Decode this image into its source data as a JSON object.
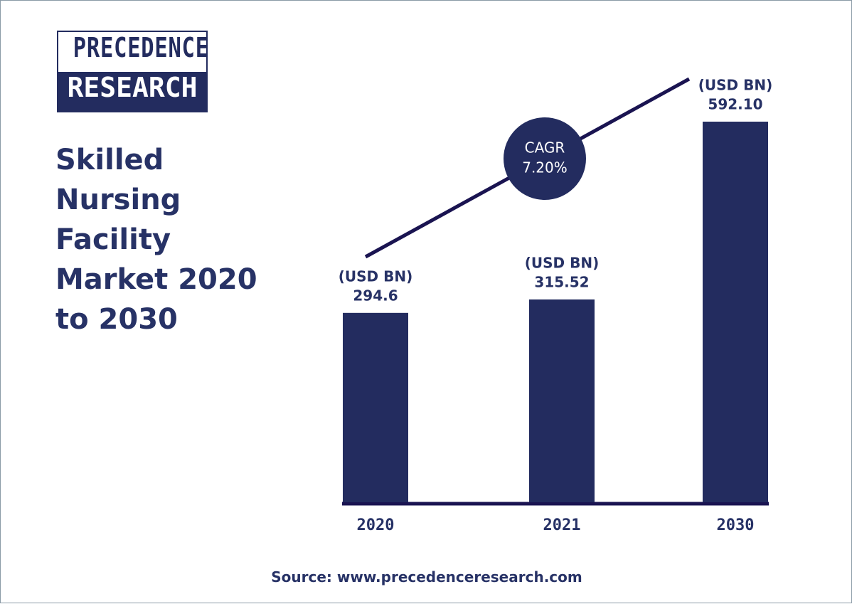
{
  "logo": {
    "line1": "PRECEDENCE",
    "line2": "RESEARCH"
  },
  "source": "Source: www.precedenceresearch.com",
  "chart_data": {
    "type": "bar",
    "title": "Skilled Nursing Facility Market 2020 to 2030",
    "categories": [
      "2020",
      "2021",
      "2030"
    ],
    "values": [
      294.6,
      315.52,
      592.1
    ],
    "value_labels": [
      "294.6",
      "315.52",
      "592.10"
    ],
    "unit": "(USD BN)",
    "color": "#232c5f",
    "annotation": {
      "label": "CAGR",
      "text": "7.20%"
    }
  }
}
